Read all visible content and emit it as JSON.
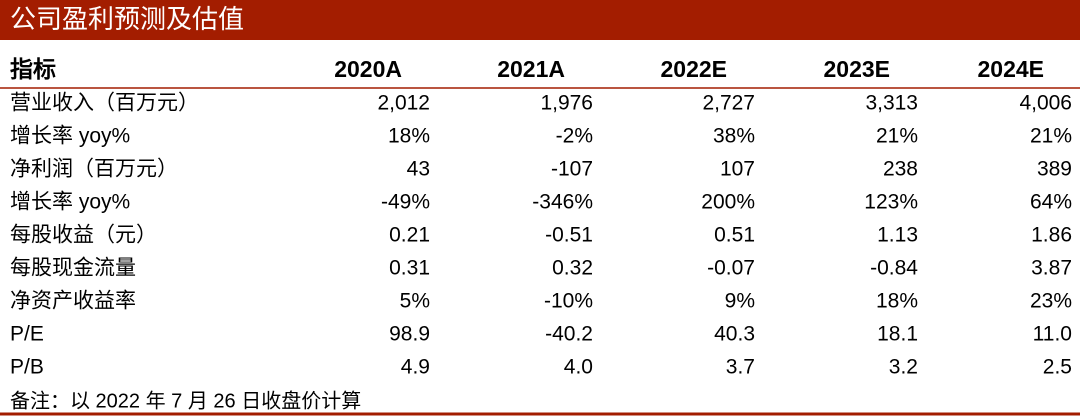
{
  "header": {
    "title": "公司盈利预测及估值"
  },
  "table": {
    "columns": [
      "指标",
      "2020A",
      "2021A",
      "2022E",
      "2023E",
      "2024E"
    ],
    "rows": [
      [
        "营业收入（百万元）",
        "2,012",
        "1,976",
        "2,727",
        "3,313",
        "4,006"
      ],
      [
        "增长率 yoy%",
        "18%",
        "-2%",
        "38%",
        "21%",
        "21%"
      ],
      [
        "净利润（百万元）",
        "43",
        "-107",
        "107",
        "238",
        "389"
      ],
      [
        "增长率 yoy%",
        "-49%",
        "-346%",
        "200%",
        "123%",
        "64%"
      ],
      [
        "每股收益（元）",
        "0.21",
        "-0.51",
        "0.51",
        "1.13",
        "1.86"
      ],
      [
        "每股现金流量",
        "0.31",
        "0.32",
        "-0.07",
        "-0.84",
        "3.87"
      ],
      [
        "净资产收益率",
        "5%",
        "-10%",
        "9%",
        "18%",
        "23%"
      ],
      [
        "P/E",
        "98.9",
        "-40.2",
        "40.3",
        "18.1",
        "11.0"
      ],
      [
        "P/B",
        "4.9",
        "4.0",
        "3.7",
        "3.2",
        "2.5"
      ]
    ]
  },
  "note": "备注：以 2022 年 7 月 26 日收盘价计算"
}
